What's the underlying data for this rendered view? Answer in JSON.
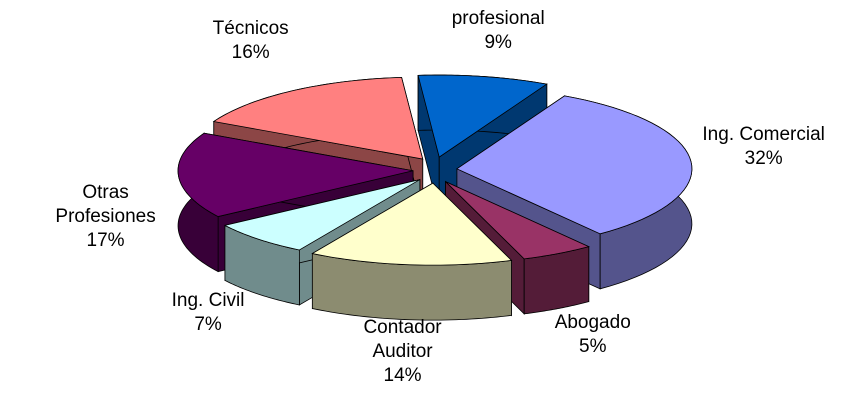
{
  "chart_data": {
    "type": "pie",
    "categories": [
      "Personal no profesional",
      "Ing. Comercial",
      "Abogado",
      "Contador Auditor",
      "Ing. Civil",
      "Otras Profesiones",
      "Técnicos"
    ],
    "values": [
      9,
      32,
      5,
      14,
      7,
      17,
      16
    ],
    "value_labels": [
      "9%",
      "32%",
      "5%",
      "14%",
      "7%",
      "17%",
      "16%"
    ],
    "colors": [
      "#0066cc",
      "#9999ff",
      "#993366",
      "#ffffcc",
      "#ccffff",
      "#660066",
      "#ff8080"
    ]
  }
}
